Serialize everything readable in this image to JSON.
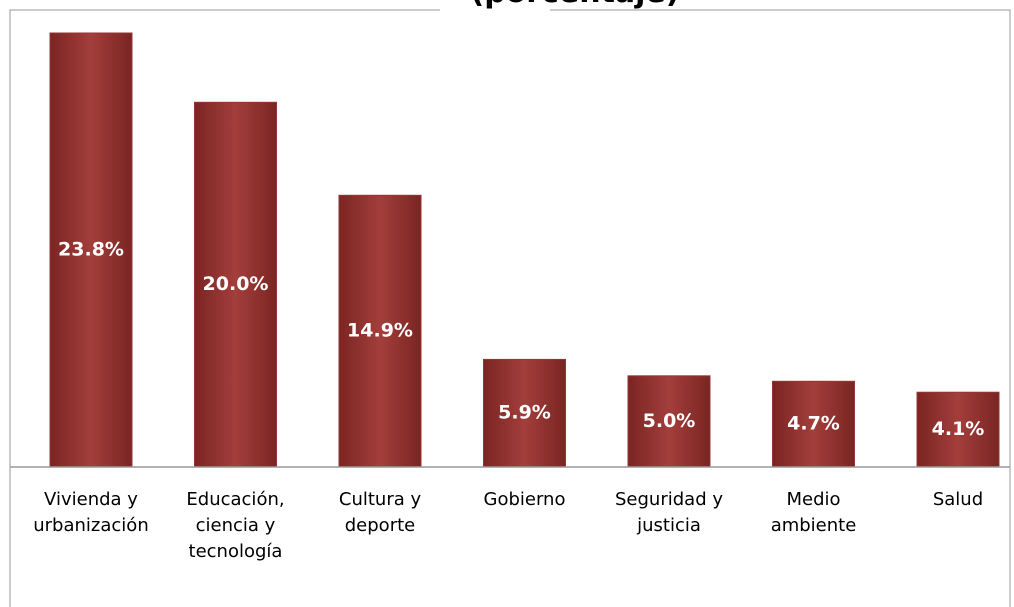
{
  "chart_data": {
    "type": "bar",
    "title": "(porcentaje)",
    "categories": [
      "Vivienda y\nurbanización",
      "Educación,\nciencia y\ntecnología",
      "Cultura y\ndeporte",
      "Gobierno",
      "Seguridad y\njusticia",
      "Medio\nambiente",
      "Salud"
    ],
    "values": [
      23.8,
      20.0,
      14.9,
      5.9,
      5.0,
      4.7,
      4.1
    ],
    "value_labels": [
      "23.8%",
      "20.0%",
      "14.9%",
      "5.9%",
      "5.0%",
      "4.7%",
      "4.1%"
    ],
    "color": "#943634"
  }
}
